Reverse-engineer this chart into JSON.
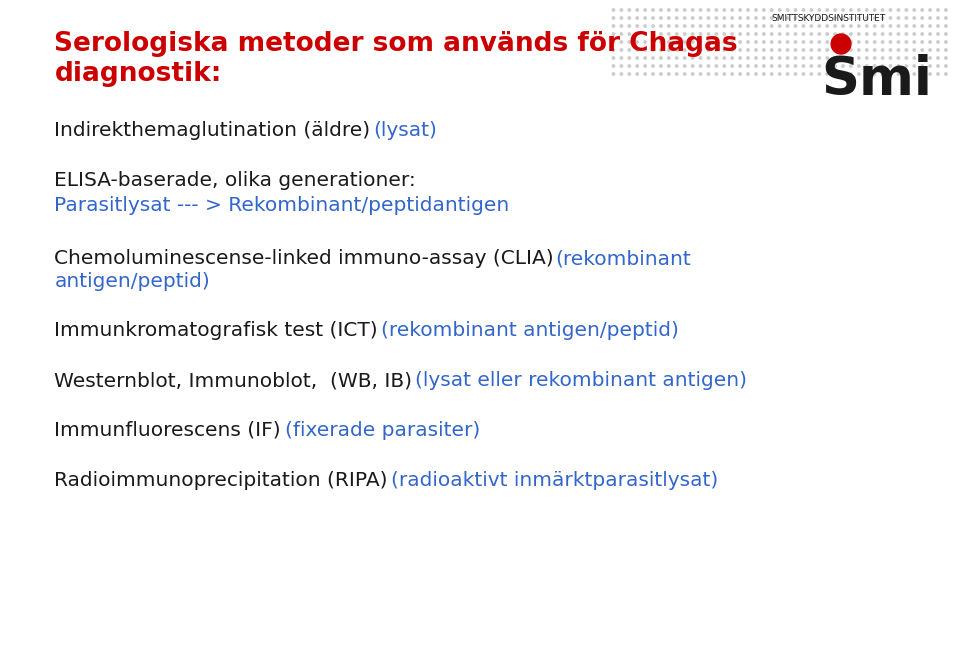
{
  "title_line1": "Serologiska metoder som används för Chagas",
  "title_line2": "diagnostik:",
  "title_color": "#cc0000",
  "black_color": "#1a1a1a",
  "blue_color": "#3366cc",
  "bg_color": "#ffffff",
  "lines": [
    {
      "parts": [
        {
          "text": "Indirekthemaglutination (äldre) ",
          "color": "#1a1a1a"
        },
        {
          "text": "(lysat)",
          "color": "#3366cc"
        }
      ]
    },
    {
      "parts": [
        {
          "text": "ELISA-baserade, olika generationer:",
          "color": "#1a1a1a"
        }
      ]
    },
    {
      "parts": [
        {
          "text": "Parasitlysat --- > Rekombinant/peptidantigen",
          "color": "#3366cc"
        }
      ]
    },
    {
      "parts": [
        {
          "text": "Chemoluminescense-linked immuno-assay (CLIA) ",
          "color": "#1a1a1a"
        },
        {
          "text": "(rekombinant",
          "color": "#3366cc"
        }
      ]
    },
    {
      "parts": [
        {
          "text": "antigen/peptid)",
          "color": "#3366cc"
        }
      ]
    },
    {
      "parts": [
        {
          "text": "Immunkromatografisk test (ICT) ",
          "color": "#1a1a1a"
        },
        {
          "text": "(rekombinant antigen/peptid)",
          "color": "#3366cc"
        }
      ]
    },
    {
      "parts": [
        {
          "text": "Westernblot, Immunoblot,  (WB, IB) ",
          "color": "#1a1a1a"
        },
        {
          "text": "(lysat eller rekombinant antigen)",
          "color": "#3366cc"
        }
      ]
    },
    {
      "parts": [
        {
          "text": "Immunfluorescens (IF) ",
          "color": "#1a1a1a"
        },
        {
          "text": "(fixerade parasiter)",
          "color": "#3366cc"
        }
      ]
    },
    {
      "parts": [
        {
          "text": "Radioimmunoprecipitation (RIPA) ",
          "color": "#1a1a1a"
        },
        {
          "text": "(radioaktivt inmärktparasitlysat)",
          "color": "#3366cc"
        }
      ]
    }
  ],
  "logo_text": "Smi",
  "logo_subtext": "SMITTSKYDDSINSTITUTET",
  "dot_color": "#cc0000",
  "dot_pattern_color": "#cccccc",
  "font_size_title": 19,
  "font_size_body": 14.5
}
